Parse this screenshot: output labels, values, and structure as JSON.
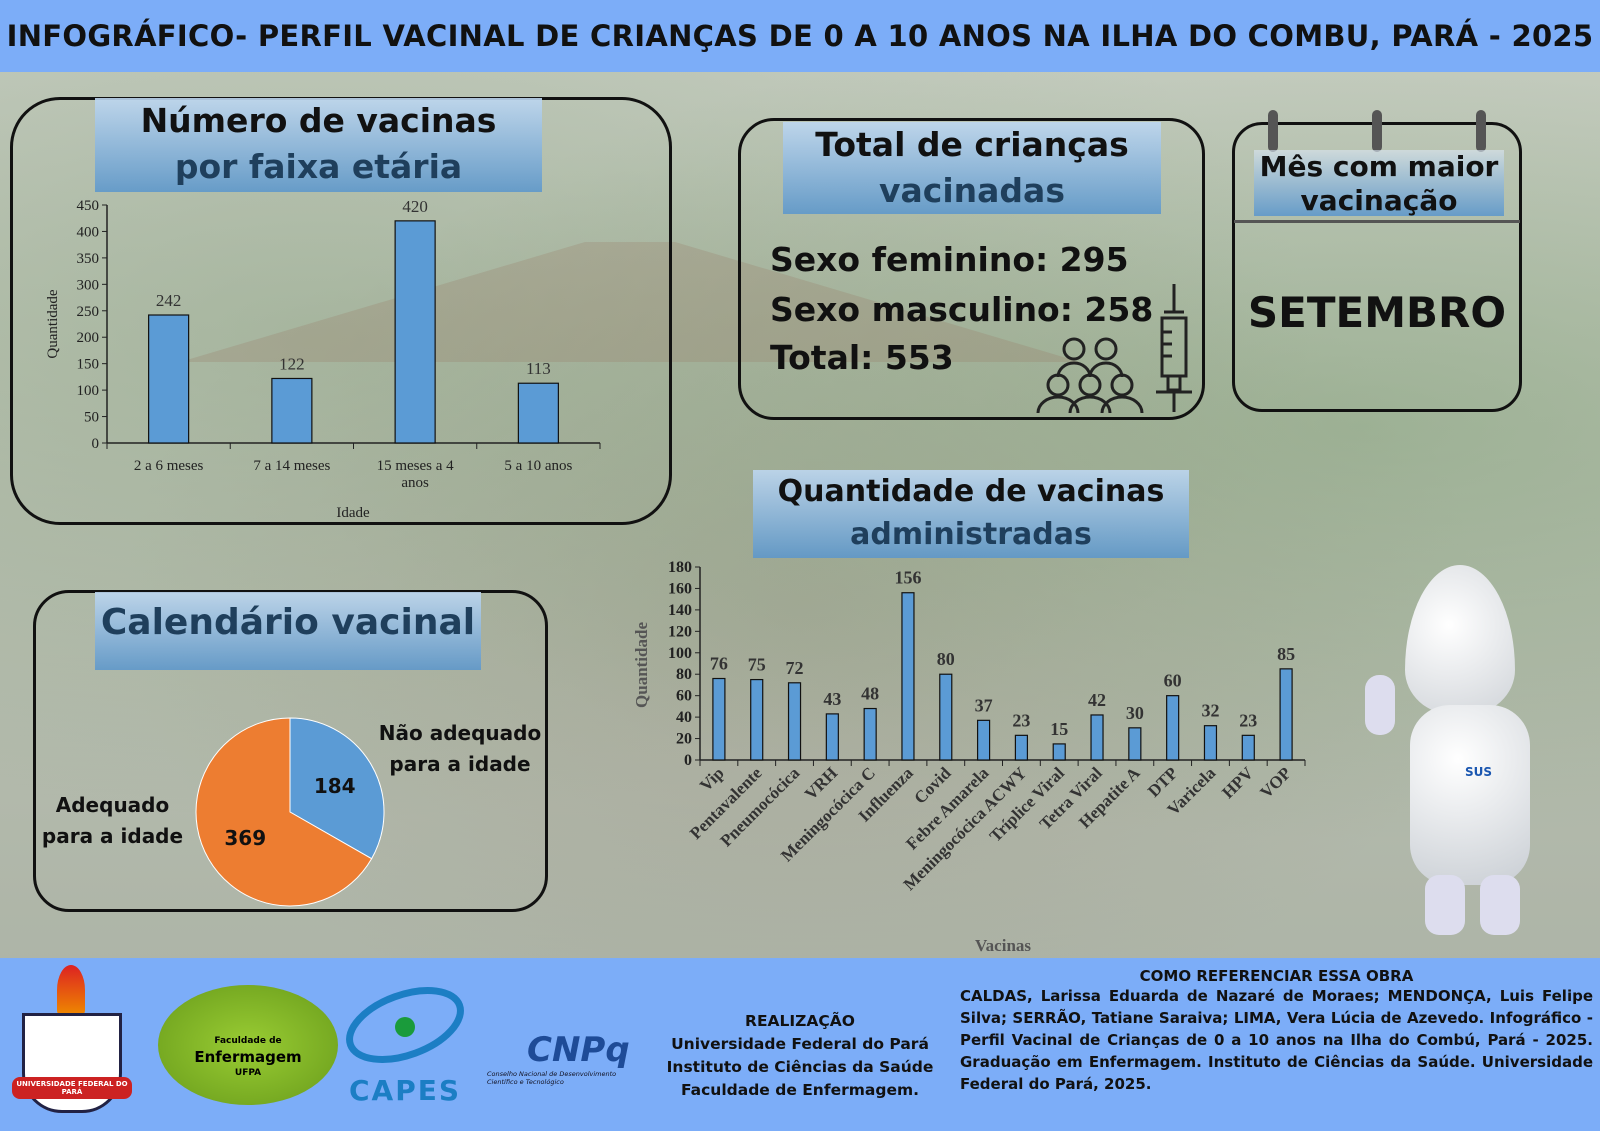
{
  "header": {
    "title": "INFOGRÁFICO- PERFIL VACINAL DE CRIANÇAS DE 0 A 10 ANOS NA ILHA DO COMBU, PARÁ - 2025"
  },
  "age_panel": {
    "title_line1": "Número de vacinas",
    "title_line2": "por faixa etária"
  },
  "total_panel": {
    "title_line1": "Total de crianças",
    "title_line2": "vacinadas",
    "female": "Sexo feminino: 295",
    "male": "Sexo masculino: 258",
    "total": "Total: 553"
  },
  "month_panel": {
    "title_line1": "Mês com maior",
    "title_line2": "vacinação",
    "value": "SETEMBRO"
  },
  "vaccines_panel": {
    "title_line1": "Quantidade de vacinas",
    "title_line2": "administradas"
  },
  "calendar_panel": {
    "title": "Calendário vacinal",
    "label_not_adequate": "Não adequado para a idade",
    "label_adequate": "Adequado para a idade"
  },
  "mascot": {
    "badge": "SUS"
  },
  "footer": {
    "logos": {
      "ufpa": "UNIVERSIDADE FEDERAL DO PARÁ",
      "fen_1": "Faculdade de",
      "fen_2": "Enfermagem",
      "fen_3": "UFPA",
      "capes": "CAPES",
      "cnpq": "CNPq",
      "cnpq_sub": "Conselho Nacional de Desenvolvimento Científico e Tecnológico"
    },
    "realizacao_title": "REALIZAÇÃO",
    "realizacao_1": "Universidade Federal do Pará",
    "realizacao_2": "Instituto de Ciências da Saúde",
    "realizacao_3": "Faculdade de Enfermagem.",
    "ref_title": "COMO REFERENCIAR ESSA OBRA",
    "ref_text": "CALDAS, Larissa Eduarda de Nazaré de Moraes; MENDONÇA, Luis Felipe Silva; SERRÃO, Tatiane Saraiva; LIMA, Vera Lúcia de Azevedo. Infográfico - Perfil Vacinal de Crianças de 0 a 10 anos na Ilha do Combú, Pará - 2025. Graduação em Enfermagem. Instituto de Ciências da Saúde. Universidade Federal do Pará, 2025."
  },
  "chart_data": [
    {
      "type": "bar",
      "title": "Número de vacinas por faixa etária",
      "categories": [
        "2 a 6 meses",
        "7 a 14 meses",
        "15 meses a 4 anos",
        "5 a 10 anos"
      ],
      "values": [
        242,
        122,
        420,
        113
      ],
      "xlabel": "Idade",
      "ylabel": "Quantidade",
      "ylim": [
        0,
        450
      ],
      "yticks": [
        0,
        50,
        100,
        150,
        200,
        250,
        300,
        350,
        400,
        450
      ],
      "color": "#5b9bd5"
    },
    {
      "type": "bar",
      "title": "Quantidade de vacinas administradas",
      "categories": [
        "Vip",
        "Pentavalente",
        "Pneumocócica",
        "VRH",
        "Meningocócica C",
        "Influenza",
        "Covid",
        "Febre Amarela",
        "Meningocócica ACWY",
        "Tríplice Viral",
        "Tetra Viral",
        "Hepatite A",
        "DTP",
        "Varicela",
        "HPV",
        "VOP"
      ],
      "values": [
        76,
        75,
        72,
        43,
        48,
        156,
        80,
        37,
        23,
        15,
        42,
        30,
        60,
        32,
        23,
        85
      ],
      "xlabel": "Vacinas",
      "ylabel": "Quantidade",
      "ylim": [
        0,
        180
      ],
      "yticks": [
        0,
        20,
        40,
        60,
        80,
        100,
        120,
        140,
        160,
        180
      ],
      "color": "#5b9bd5"
    },
    {
      "type": "pie",
      "title": "Calendário vacinal",
      "categories": [
        "Não adequado para a idade",
        "Adequado para a idade"
      ],
      "values": [
        184,
        369
      ],
      "colors": [
        "#5b9bd5",
        "#ed7d31"
      ]
    }
  ]
}
